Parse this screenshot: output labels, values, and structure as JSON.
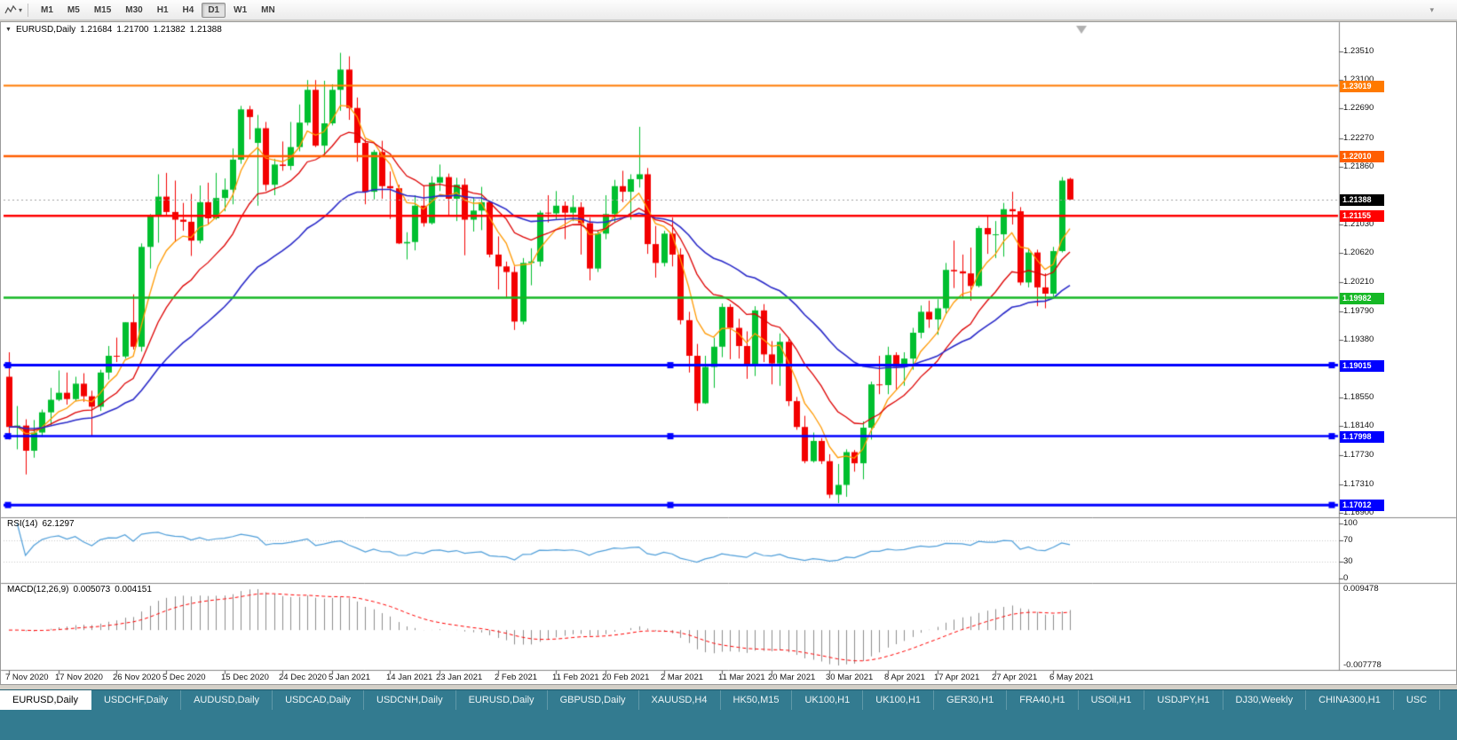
{
  "toolbar": {
    "timeframes": [
      "M1",
      "M5",
      "M15",
      "M30",
      "H1",
      "H4",
      "D1",
      "W1",
      "MN"
    ],
    "active_timeframe": "D1",
    "chart_type_icon": "line-chart-icon",
    "dropdown_glyph": "▾"
  },
  "chart": {
    "symbol_period": "EURUSD,Daily",
    "open": "1.21684",
    "high": "1.21700",
    "low": "1.21382",
    "close": "1.21388"
  },
  "price_axis": {
    "gridlines": [
      "1.23510",
      "1.23100",
      "1.22690",
      "1.22270",
      "1.21860",
      "1.21030",
      "1.20620",
      "1.20210",
      "1.19790",
      "1.19380",
      "1.18550",
      "1.18140",
      "1.17730",
      "1.17310",
      "1.16900"
    ],
    "badges": [
      {
        "text": "1.23019",
        "color": "#ff7a00"
      },
      {
        "text": "1.22010",
        "color": "#ff5e00"
      },
      {
        "text": "1.21388",
        "color": "#000000"
      },
      {
        "text": "1.21155",
        "color": "#ff0000"
      },
      {
        "text": "1.19982",
        "color": "#15b825"
      },
      {
        "text": "1.19015",
        "color": "#0000ff"
      },
      {
        "text": "1.17998",
        "color": "#0000ff"
      },
      {
        "text": "1.17012",
        "color": "#0000ff"
      }
    ]
  },
  "date_axis": {
    "labels": [
      {
        "text": "7 Nov 2020",
        "i": 0
      },
      {
        "text": "17 Nov 2020",
        "i": 6
      },
      {
        "text": "26 Nov 2020",
        "i": 13
      },
      {
        "text": "5 Dec 2020",
        "i": 19
      },
      {
        "text": "15 Dec 2020",
        "i": 26
      },
      {
        "text": "24 Dec 2020",
        "i": 33
      },
      {
        "text": "5 Jan 2021",
        "i": 39
      },
      {
        "text": "14 Jan 2021",
        "i": 46
      },
      {
        "text": "23 Jan 2021",
        "i": 52
      },
      {
        "text": "2 Feb 2021",
        "i": 59
      },
      {
        "text": "11 Feb 2021",
        "i": 66
      },
      {
        "text": "20 Feb 2021",
        "i": 72
      },
      {
        "text": "2 Mar 2021",
        "i": 79
      },
      {
        "text": "11 Mar 2021",
        "i": 86
      },
      {
        "text": "20 Mar 2021",
        "i": 92
      },
      {
        "text": "30 Mar 2021",
        "i": 99
      },
      {
        "text": "8 Apr 2021",
        "i": 106
      },
      {
        "text": "17 Apr 2021",
        "i": 112
      },
      {
        "text": "27 Apr 2021",
        "i": 119
      },
      {
        "text": "6 May 2021",
        "i": 126
      }
    ]
  },
  "rsi": {
    "name": "RSI(14)",
    "value": "62.1297",
    "axis": [
      {
        "text": "100",
        "v": 100
      },
      {
        "text": "70",
        "v": 70
      },
      {
        "text": "30",
        "v": 30
      },
      {
        "text": "0",
        "v": 0
      }
    ],
    "levels": [
      70,
      30
    ]
  },
  "macd": {
    "name": "MACD(12,26,9)",
    "value_main": "0.005073",
    "value_signal": "0.004151",
    "axis_top": "0.009478",
    "axis_bottom": "-0.007778"
  },
  "tabs": [
    {
      "label": "EURUSD,Daily",
      "active": true
    },
    {
      "label": "USDCHF,Daily"
    },
    {
      "label": "AUDUSD,Daily"
    },
    {
      "label": "USDCAD,Daily"
    },
    {
      "label": "USDCNH,Daily"
    },
    {
      "label": "EURUSD,Daily"
    },
    {
      "label": "GBPUSD,Daily"
    },
    {
      "label": "XAUUSD,H4"
    },
    {
      "label": "HK50,M15"
    },
    {
      "label": "UK100,H1"
    },
    {
      "label": "UK100,H1"
    },
    {
      "label": "GER30,H1"
    },
    {
      "label": "FRA40,H1"
    },
    {
      "label": "USOil,H1"
    },
    {
      "label": "USDJPY,H1"
    },
    {
      "label": "DJ30,Weekly"
    },
    {
      "label": "CHINA300,H1"
    },
    {
      "label": "USC"
    }
  ],
  "chart_data": {
    "type": "candlestick",
    "symbol": "EURUSD",
    "period": "Daily",
    "price_axis_range": [
      1.16849,
      1.23713
    ],
    "rsi_range": [
      0,
      100
    ],
    "macd_axis_labels": [
      0.009478,
      -0.007778
    ],
    "bid": 1.21388,
    "candles": [
      [
        1.1885,
        1.192,
        1.1795,
        1.1813
      ],
      [
        1.1813,
        1.1843,
        1.1781,
        1.1815
      ],
      [
        1.1815,
        1.1824,
        1.1745,
        1.1779
      ],
      [
        1.1779,
        1.1823,
        1.1769,
        1.1805
      ],
      [
        1.1805,
        1.1838,
        1.1799,
        1.1834
      ],
      [
        1.1834,
        1.1869,
        1.1815,
        1.1852
      ],
      [
        1.1852,
        1.1894,
        1.185,
        1.1862
      ],
      [
        1.1862,
        1.1891,
        1.1845,
        1.1853
      ],
      [
        1.1853,
        1.1885,
        1.185,
        1.1875
      ],
      [
        1.1875,
        1.189,
        1.1849,
        1.1857
      ],
      [
        1.1857,
        1.1865,
        1.18,
        1.1842
      ],
      [
        1.1842,
        1.1895,
        1.1836,
        1.1891
      ],
      [
        1.1891,
        1.1929,
        1.1881,
        1.1915
      ],
      [
        1.1915,
        1.1941,
        1.1906,
        1.1914
      ],
      [
        1.1914,
        1.1963,
        1.1911,
        1.1963
      ],
      [
        1.1963,
        1.2003,
        1.1924,
        1.1928
      ],
      [
        1.1928,
        1.2076,
        1.1921,
        1.2071
      ],
      [
        1.2071,
        1.2118,
        1.204,
        1.2115
      ],
      [
        1.2115,
        1.2175,
        1.2077,
        1.2143
      ],
      [
        1.2143,
        1.2177,
        1.2117,
        1.2121
      ],
      [
        1.2121,
        1.2166,
        1.2078,
        1.211
      ],
      [
        1.211,
        1.2134,
        1.2094,
        1.2107
      ],
      [
        1.2107,
        1.2147,
        1.2058,
        1.208
      ],
      [
        1.208,
        1.2159,
        1.2076,
        1.2135
      ],
      [
        1.2135,
        1.2163,
        1.2103,
        1.2112
      ],
      [
        1.2112,
        1.2177,
        1.211,
        1.2141
      ],
      [
        1.2141,
        1.2169,
        1.2122,
        1.2153
      ],
      [
        1.2153,
        1.2212,
        1.2132,
        1.2196
      ],
      [
        1.2196,
        1.2273,
        1.219,
        1.2268
      ],
      [
        1.2268,
        1.2273,
        1.2225,
        1.2257
      ],
      [
        1.222,
        1.226,
        1.213,
        1.2241
      ],
      [
        1.2241,
        1.225,
        1.2151,
        1.216
      ],
      [
        1.216,
        1.2197,
        1.2145,
        1.2189
      ],
      [
        1.2189,
        1.2222,
        1.218,
        1.2187
      ],
      [
        1.2187,
        1.225,
        1.2181,
        1.2214
      ],
      [
        1.2214,
        1.2275,
        1.2208,
        1.2249
      ],
      [
        1.2249,
        1.231,
        1.2245,
        1.2296
      ],
      [
        1.2296,
        1.231,
        1.2214,
        1.2216
      ],
      [
        1.2216,
        1.2309,
        1.22,
        1.2248
      ],
      [
        1.2248,
        1.2304,
        1.2245,
        1.2296
      ],
      [
        1.2296,
        1.2349,
        1.2266,
        1.2325
      ],
      [
        1.2325,
        1.2344,
        1.2253,
        1.227
      ],
      [
        1.227,
        1.2285,
        1.2193,
        1.222
      ],
      [
        1.222,
        1.2225,
        1.2132,
        1.215
      ],
      [
        1.215,
        1.221,
        1.2139,
        1.2207
      ],
      [
        1.2207,
        1.2223,
        1.214,
        1.2158
      ],
      [
        1.2158,
        1.2179,
        1.2111,
        1.2155
      ],
      [
        1.2155,
        1.216,
        1.2075,
        1.2076
      ],
      [
        1.2076,
        1.2092,
        1.2053,
        1.2078
      ],
      [
        1.2078,
        1.2145,
        1.2066,
        1.213
      ],
      [
        1.213,
        1.2158,
        1.21,
        1.2105
      ],
      [
        1.2105,
        1.2172,
        1.2103,
        1.2163
      ],
      [
        1.2163,
        1.2189,
        1.2151,
        1.2171
      ],
      [
        1.2171,
        1.2176,
        1.2116,
        1.214
      ],
      [
        1.214,
        1.217,
        1.2108,
        1.216
      ],
      [
        1.216,
        1.2169,
        1.2059,
        1.211
      ],
      [
        1.211,
        1.2142,
        1.2093,
        1.2123
      ],
      [
        1.2123,
        1.2157,
        1.2095,
        1.2135
      ],
      [
        1.2135,
        1.2136,
        1.2056,
        1.206
      ],
      [
        1.206,
        1.2086,
        1.201,
        1.2043
      ],
      [
        1.2043,
        1.205,
        1.1999,
        1.2035
      ],
      [
        1.2035,
        1.2043,
        1.1952,
        1.1964
      ],
      [
        1.1964,
        1.2055,
        1.196,
        1.2048
      ],
      [
        1.2048,
        1.2069,
        1.2016,
        1.205
      ],
      [
        1.205,
        1.2123,
        1.2043,
        1.212
      ],
      [
        1.212,
        1.2145,
        1.2106,
        1.2119
      ],
      [
        1.2119,
        1.2151,
        1.211,
        1.213
      ],
      [
        1.213,
        1.2136,
        1.2082,
        1.212
      ],
      [
        1.212,
        1.2145,
        1.2108,
        1.2128
      ],
      [
        1.2128,
        1.2135,
        1.206,
        1.2105
      ],
      [
        1.2105,
        1.2113,
        1.2023,
        1.204
      ],
      [
        1.204,
        1.2094,
        1.2035,
        1.209
      ],
      [
        1.209,
        1.2145,
        1.2082,
        1.2118
      ],
      [
        1.2118,
        1.2167,
        1.2107,
        1.2158
      ],
      [
        1.2158,
        1.218,
        1.2135,
        1.215
      ],
      [
        1.215,
        1.2175,
        1.211,
        1.2168
      ],
      [
        1.2168,
        1.2243,
        1.2156,
        1.2175
      ],
      [
        1.2175,
        1.2184,
        1.2061,
        1.2075
      ],
      [
        1.2075,
        1.2101,
        1.2027,
        1.2048
      ],
      [
        1.2048,
        1.2094,
        1.2043,
        1.209
      ],
      [
        1.209,
        1.2113,
        1.2043,
        1.206
      ],
      [
        1.206,
        1.2069,
        1.196,
        1.1966
      ],
      [
        1.1966,
        1.1978,
        1.1891,
        1.1915
      ],
      [
        1.1915,
        1.1932,
        1.1836,
        1.1847
      ],
      [
        1.1847,
        1.1915,
        1.1846,
        1.1899
      ],
      [
        1.1899,
        1.1941,
        1.1869,
        1.1928
      ],
      [
        1.1928,
        1.199,
        1.1913,
        1.1985
      ],
      [
        1.1985,
        1.1989,
        1.191,
        1.1955
      ],
      [
        1.1955,
        1.1968,
        1.1911,
        1.1929
      ],
      [
        1.1929,
        1.195,
        1.1882,
        1.19
      ],
      [
        1.19,
        1.1986,
        1.1886,
        1.198
      ],
      [
        1.198,
        1.1989,
        1.1906,
        1.1917
      ],
      [
        1.1917,
        1.1936,
        1.1874,
        1.1904
      ],
      [
        1.1904,
        1.1947,
        1.1872,
        1.1935
      ],
      [
        1.1935,
        1.1941,
        1.1843,
        1.185
      ],
      [
        1.185,
        1.1856,
        1.1809,
        1.1813
      ],
      [
        1.1813,
        1.1829,
        1.1761,
        1.1764
      ],
      [
        1.1764,
        1.1805,
        1.1762,
        1.1793
      ],
      [
        1.1793,
        1.1797,
        1.176,
        1.1764
      ],
      [
        1.1764,
        1.1774,
        1.1711,
        1.1716
      ],
      [
        1.1716,
        1.176,
        1.1704,
        1.173
      ],
      [
        1.173,
        1.1781,
        1.1713,
        1.1777
      ],
      [
        1.1777,
        1.178,
        1.1749,
        1.1761
      ],
      [
        1.1761,
        1.1821,
        1.1738,
        1.1812
      ],
      [
        1.1812,
        1.1878,
        1.1795,
        1.1874
      ],
      [
        1.1874,
        1.1915,
        1.186,
        1.1873
      ],
      [
        1.1873,
        1.1928,
        1.186,
        1.1916
      ],
      [
        1.1916,
        1.192,
        1.1867,
        1.1899
      ],
      [
        1.1899,
        1.192,
        1.1872,
        1.1911
      ],
      [
        1.1911,
        1.1955,
        1.1895,
        1.1948
      ],
      [
        1.1948,
        1.1987,
        1.194,
        1.1978
      ],
      [
        1.1978,
        1.1994,
        1.1955,
        1.1967
      ],
      [
        1.1967,
        1.1996,
        1.1945,
        1.1983
      ],
      [
        1.1983,
        1.2048,
        1.1975,
        1.2038
      ],
      [
        1.2038,
        1.208,
        1.2012,
        1.2036
      ],
      [
        1.2036,
        1.206,
        1.1997,
        1.2033
      ],
      [
        1.2033,
        1.207,
        1.1994,
        1.2015
      ],
      [
        1.2015,
        1.2101,
        1.2013,
        1.2098
      ],
      [
        1.2098,
        1.2117,
        1.2061,
        1.2089
      ],
      [
        1.2089,
        1.2108,
        1.2055,
        1.2089
      ],
      [
        1.2089,
        1.2134,
        1.2057,
        1.2125
      ],
      [
        1.2125,
        1.215,
        1.2103,
        1.2122
      ],
      [
        1.2122,
        1.2128,
        1.2016,
        1.202
      ],
      [
        1.202,
        1.2068,
        1.2013,
        1.2063
      ],
      [
        1.2063,
        1.2067,
        1.1986,
        1.2013
      ],
      [
        1.2013,
        1.2033,
        1.1983,
        1.2004
      ],
      [
        1.2004,
        1.2071,
        1.2,
        1.2065
      ],
      [
        1.2065,
        1.2171,
        1.2063,
        1.2166
      ],
      [
        1.21684,
        1.217,
        1.21382,
        1.21388
      ]
    ],
    "moving_averages": [
      {
        "period": 6,
        "method": "ema",
        "color": "#ff9900",
        "width": 1.3
      },
      {
        "period": 14,
        "method": "ema",
        "color": "#dd0000",
        "width": 1.3
      },
      {
        "period": 32,
        "method": "ema",
        "color": "#2929c8",
        "width": 1.6
      }
    ],
    "hlines": [
      {
        "price": 1.23019,
        "color": "#ff7a00",
        "width": 2,
        "handles": false
      },
      {
        "price": 1.2201,
        "color": "#ff5e00",
        "width": 2.5,
        "handles": false
      },
      {
        "price": 1.21155,
        "color": "#ff0000",
        "width": 2.5,
        "handles": false
      },
      {
        "price": 1.19982,
        "color": "#15b825",
        "width": 2.5,
        "handles": false
      },
      {
        "price": 1.19015,
        "color": "#0000ff",
        "width": 3,
        "handles": true
      },
      {
        "price": 1.17998,
        "color": "#0000ff",
        "width": 2.5,
        "handles": true
      },
      {
        "price": 1.17012,
        "color": "#0000ff",
        "width": 3,
        "handles": true
      }
    ],
    "colors": {
      "up": "#00bf2f",
      "down": "#f30000",
      "rsi": "#4f9ed9",
      "macd_bar": "#8c8c8c",
      "macd_signal": "#ff0000",
      "bid_line": "#a0a0a0",
      "level_dotted": "#c8c8c8"
    }
  }
}
